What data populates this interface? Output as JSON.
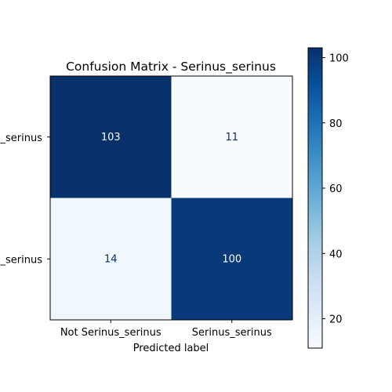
{
  "chart_data": {
    "type": "heatmap",
    "title": "Confusion Matrix - Serinus_serinus",
    "xlabel": "Predicted label",
    "ylabel": "",
    "x_categories": [
      "Not Serinus_serinus",
      "Serinus_serinus"
    ],
    "y_categories": [
      "Not Serinus_serinus",
      "Serinus_serinus"
    ],
    "y_tick_labels_visible": [
      "_serinus",
      "_serinus"
    ],
    "values": [
      [
        103,
        11
      ],
      [
        14,
        100
      ]
    ],
    "colormap": "Blues",
    "colorbar": {
      "min": 11,
      "max": 103,
      "ticks": [
        "20",
        "40",
        "60",
        "80",
        "100"
      ]
    },
    "grid": false
  }
}
